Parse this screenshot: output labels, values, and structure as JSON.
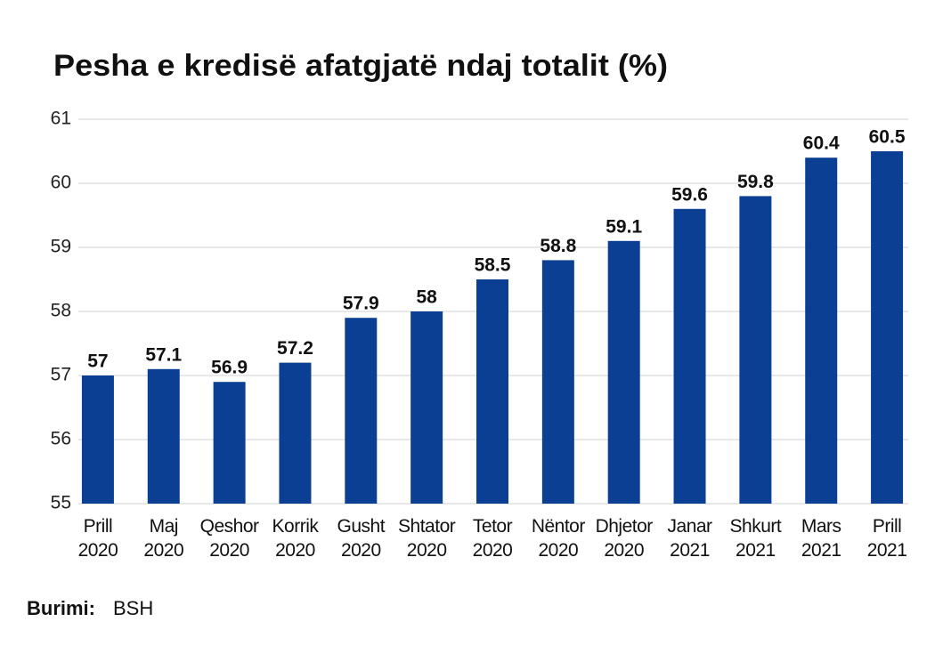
{
  "chart_data": {
    "type": "bar",
    "title": "Pesha e kredisë afatgjatë ndaj totalit (%)",
    "categories": [
      "Prill 2020",
      "Maj 2020",
      "Qeshor 2020",
      "Korrik 2020",
      "Gusht 2020",
      "Shtator 2020",
      "Tetor 2020",
      "Nëntor 2020",
      "Dhjetor 2020",
      "Janar 2021",
      "Shkurt 2021",
      "Mars 2021",
      "Prill 2021"
    ],
    "values": [
      57,
      57.1,
      56.9,
      57.2,
      57.9,
      58,
      58.5,
      58.8,
      59.1,
      59.6,
      59.8,
      60.4,
      60.5
    ],
    "color": "#0b3f94",
    "ylim": [
      55,
      61
    ],
    "yticks": [
      55,
      56,
      57,
      58,
      59,
      60,
      61
    ],
    "grid": true,
    "source_label": "Burimi:",
    "source": "BSH"
  }
}
